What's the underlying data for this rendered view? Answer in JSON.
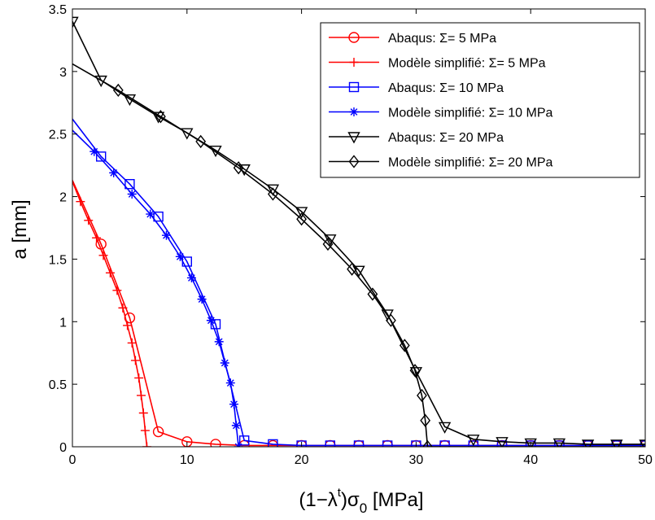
{
  "chart_data": {
    "type": "line",
    "xlabel": {
      "prefix": "(1−λ",
      "sup": "t",
      "mid": ")σ",
      "sub": "0",
      "suffix": " [MPa]"
    },
    "ylabel": "a [mm]",
    "xlim": [
      0,
      50
    ],
    "ylim": [
      0,
      3.5
    ],
    "xticks": [
      0,
      10,
      20,
      30,
      40,
      50
    ],
    "xtick_labels": [
      "0",
      "10",
      "20",
      "30",
      "40",
      "50"
    ],
    "yticks": [
      0,
      0.5,
      1,
      1.5,
      2,
      2.5,
      3,
      3.5
    ],
    "ytick_labels": [
      "0",
      "0.5",
      "1",
      "1.5",
      "2",
      "2.5",
      "3",
      "3.5"
    ],
    "grid": false,
    "legend_position": "top-right",
    "series": [
      {
        "name": "Abaqus: Σ= 5 MPa",
        "color": "#ff0000",
        "marker": "circle",
        "line": {
          "x": [
            0,
            2.5,
            5,
            7.5,
            10,
            12.5,
            15,
            17.5,
            20,
            22.5,
            25,
            27.5,
            30,
            32.5,
            35,
            37.5,
            40,
            42.5,
            45,
            47.5,
            50
          ],
          "y": [
            2.13,
            1.62,
            1.03,
            0.12,
            0.04,
            0.02,
            0.01,
            0.01,
            0.01,
            0.01,
            0.01,
            0.01,
            0.01,
            0.01,
            0.01,
            0.01,
            0.01,
            0.01,
            0.01,
            0.01,
            0.01
          ]
        },
        "markers": {
          "x": [
            2.5,
            5,
            7.5,
            10,
            12.5,
            15,
            17.5,
            20,
            22.5,
            25,
            27.5,
            30,
            32.5,
            35,
            37.5,
            40,
            42.5,
            45,
            47.5,
            50
          ],
          "y": [
            1.62,
            1.03,
            0.12,
            0.04,
            0.02,
            0.01,
            0.01,
            0.01,
            0.01,
            0.01,
            0.01,
            0.01,
            0.01,
            0.01,
            0.01,
            0.01,
            0.01,
            0.01,
            0.01,
            0.01
          ]
        }
      },
      {
        "name": "Modèle simplifié: Σ= 5 MPa",
        "color": "#ff0000",
        "marker": "plus",
        "line": {
          "x": [
            0,
            0.7,
            1.4,
            2.1,
            2.7,
            3.3,
            3.9,
            4.4,
            4.8,
            5.2,
            5.5,
            5.8,
            6.0,
            6.2,
            6.35,
            6.5
          ],
          "y": [
            2.12,
            1.96,
            1.81,
            1.67,
            1.53,
            1.39,
            1.25,
            1.11,
            0.97,
            0.83,
            0.69,
            0.55,
            0.41,
            0.27,
            0.13,
            0.0
          ]
        },
        "markers": {
          "x": [
            0.7,
            1.4,
            2.1,
            2.7,
            3.3,
            3.9,
            4.4,
            4.8,
            5.2,
            5.5,
            5.8,
            6.0,
            6.2,
            6.35,
            6.5
          ],
          "y": [
            1.96,
            1.81,
            1.67,
            1.53,
            1.39,
            1.25,
            1.11,
            0.97,
            0.83,
            0.69,
            0.55,
            0.41,
            0.27,
            0.13,
            0.0
          ]
        }
      },
      {
        "name": "Abaqus: Σ= 10 MPa",
        "color": "#0000ff",
        "marker": "square",
        "line": {
          "x": [
            0,
            2.5,
            5,
            7.5,
            10,
            12.5,
            15,
            17.5,
            20,
            22.5,
            25,
            27.5,
            30,
            32.5,
            35,
            37.5,
            40,
            42.5,
            45,
            47.5,
            50
          ],
          "y": [
            2.62,
            2.32,
            2.1,
            1.84,
            1.48,
            0.98,
            0.05,
            0.02,
            0.01,
            0.01,
            0.01,
            0.01,
            0.01,
            0.01,
            0.01,
            0.01,
            0.01,
            0.01,
            0.01,
            0.01,
            0.01
          ]
        },
        "markers": {
          "x": [
            2.5,
            5,
            7.5,
            10,
            12.5,
            15,
            17.5,
            20,
            22.5,
            25,
            27.5,
            30,
            32.5,
            35,
            37.5,
            40,
            42.5,
            45,
            47.5,
            50
          ],
          "y": [
            2.32,
            2.1,
            1.84,
            1.48,
            0.98,
            0.05,
            0.02,
            0.01,
            0.01,
            0.01,
            0.01,
            0.01,
            0.01,
            0.01,
            0.01,
            0.01,
            0.01,
            0.01,
            0.01,
            0.01
          ]
        }
      },
      {
        "name": "Modèle simplifié: Σ= 10 MPa",
        "color": "#0000ff",
        "marker": "asterisk",
        "line": {
          "x": [
            0,
            1.9,
            3.6,
            5.2,
            6.8,
            8.2,
            9.4,
            10.4,
            11.3,
            12.1,
            12.8,
            13.3,
            13.8,
            14.1,
            14.3,
            14.5
          ],
          "y": [
            2.53,
            2.36,
            2.19,
            2.02,
            1.86,
            1.69,
            1.52,
            1.35,
            1.18,
            1.01,
            0.84,
            0.67,
            0.51,
            0.34,
            0.17,
            0.0
          ]
        },
        "markers": {
          "x": [
            1.9,
            3.6,
            5.2,
            6.8,
            8.2,
            9.4,
            10.4,
            11.3,
            12.1,
            12.8,
            13.3,
            13.8,
            14.1,
            14.3,
            14.5
          ],
          "y": [
            2.36,
            2.19,
            2.02,
            1.86,
            1.69,
            1.52,
            1.35,
            1.18,
            1.01,
            0.84,
            0.67,
            0.51,
            0.34,
            0.17,
            0.0
          ]
        }
      },
      {
        "name": "Abaqus: Σ= 20 MPa",
        "color": "#000000",
        "marker": "triangle-down",
        "line": {
          "x": [
            0,
            2.5,
            5,
            7.5,
            10,
            12.5,
            15,
            17.5,
            20,
            22.5,
            25,
            27.5,
            30,
            32.5,
            35,
            37.5,
            40,
            42.5,
            45,
            47.5,
            50
          ],
          "y": [
            3.4,
            2.93,
            2.78,
            2.64,
            2.51,
            2.37,
            2.22,
            2.06,
            1.88,
            1.66,
            1.41,
            1.06,
            0.6,
            0.16,
            0.06,
            0.04,
            0.03,
            0.03,
            0.02,
            0.02,
            0.02
          ]
        },
        "markers": {
          "x": [
            0,
            2.5,
            5,
            7.5,
            10,
            12.5,
            15,
            17.5,
            20,
            22.5,
            25,
            27.5,
            30,
            32.5,
            35,
            37.5,
            40,
            42.5,
            45,
            47.5,
            50
          ],
          "y": [
            3.4,
            2.93,
            2.78,
            2.64,
            2.51,
            2.37,
            2.22,
            2.06,
            1.88,
            1.66,
            1.41,
            1.06,
            0.6,
            0.16,
            0.06,
            0.04,
            0.03,
            0.03,
            0.02,
            0.02,
            0.02
          ]
        }
      },
      {
        "name": "Modèle simplifié: Σ= 20 MPa",
        "color": "#000000",
        "marker": "diamond",
        "line": {
          "x": [
            0,
            4,
            7.7,
            11.2,
            14.5,
            17.5,
            20,
            22.3,
            24.4,
            26.2,
            27.8,
            29,
            29.9,
            30.5,
            30.8,
            31,
            32.5,
            35,
            37.5,
            40,
            42.5,
            45,
            47.5,
            50
          ],
          "y": [
            3.06,
            2.85,
            2.64,
            2.44,
            2.23,
            2.02,
            1.82,
            1.62,
            1.42,
            1.22,
            1.01,
            0.81,
            0.61,
            0.41,
            0.21,
            0.0,
            0.0,
            0.0,
            0.0,
            0.0,
            0.0,
            0.0,
            0.0,
            0.0
          ]
        },
        "markers": {
          "x": [
            4,
            7.7,
            11.2,
            14.5,
            17.5,
            20,
            22.3,
            24.4,
            26.2,
            27.8,
            29,
            29.9,
            30.5,
            30.8,
            31
          ],
          "y": [
            2.85,
            2.64,
            2.44,
            2.23,
            2.02,
            1.82,
            1.62,
            1.42,
            1.22,
            1.01,
            0.81,
            0.61,
            0.41,
            0.21,
            0.0
          ]
        }
      }
    ]
  }
}
